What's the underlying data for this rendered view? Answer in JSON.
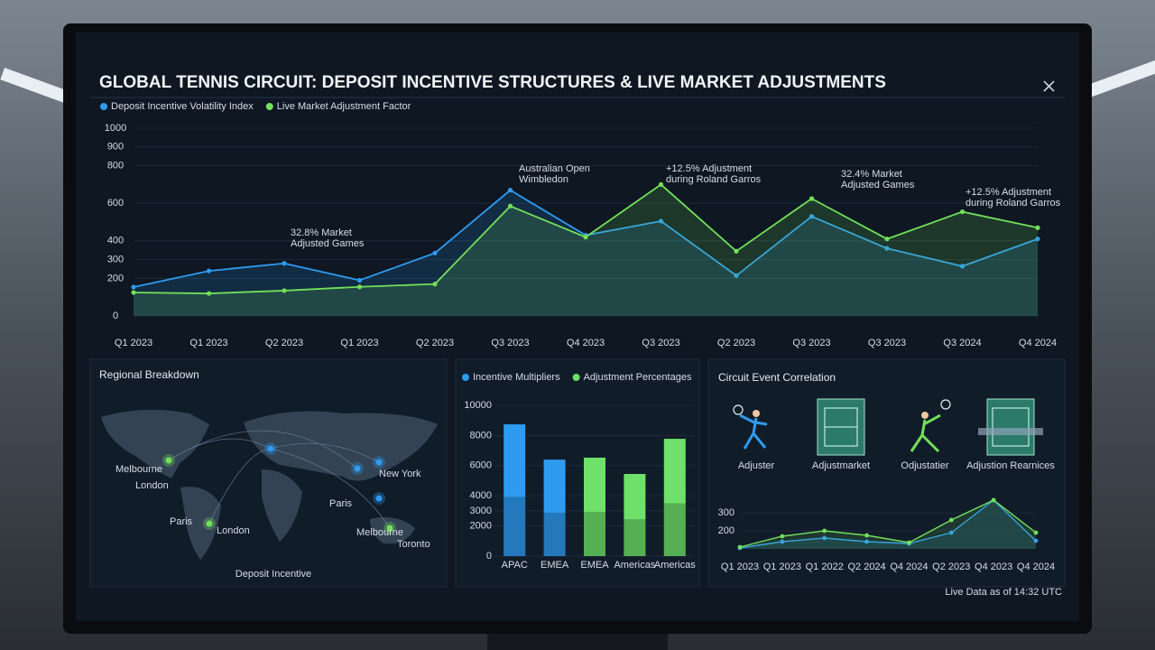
{
  "header": {
    "title": "GLOBAL TENNIS CIRCUIT: DEPOSIT INCENTIVE STRUCTURES & LIVE MARKET ADJUSTMENTS"
  },
  "chart_data": [
    {
      "type": "line",
      "categories": [
        "Q1 2023",
        "Q1 2023",
        "Q2 2023",
        "Q1 2023",
        "Q2 2023",
        "Q3 2023",
        "Q4 2023",
        "Q3 2023",
        "Q2 2023",
        "Q3 2023",
        "Q3 2023",
        "Q3 2024",
        "Q4 2024"
      ],
      "series": [
        {
          "name": "Deposit Incentive Volatility Index",
          "color": "#2e9bf0",
          "values": [
            154,
            240,
            280,
            190,
            335,
            670,
            430,
            505,
            215,
            530,
            360,
            265,
            410
          ]
        },
        {
          "name": "Live Market Adjustment Factor",
          "color": "#72e05a",
          "values": [
            125,
            120,
            135,
            155,
            170,
            585,
            420,
            700,
            345,
            625,
            410,
            555,
            470
          ]
        }
      ],
      "ylim": [
        0,
        1000
      ],
      "yticks": [
        0,
        200,
        300,
        400,
        600,
        800,
        900,
        1000
      ],
      "grid": true,
      "annotations": [
        {
          "lines": [
            "32.8% Market",
            "Adjusted Games"
          ],
          "color": "#2e9bf0"
        },
        {
          "lines": [
            "Australian Open",
            "Wimbledon"
          ],
          "color": "#2e9bf0"
        },
        {
          "lines": [
            "+12.5% Adjustment",
            "during Roland Garros"
          ],
          "color": "#72e05a"
        },
        {
          "lines": [
            "32.4% Market",
            "Adjusted Games"
          ],
          "color": "#72e05a"
        },
        {
          "lines": [
            "+12.5% Adjustment",
            "during Roland Garros"
          ],
          "color": "#72e05a"
        }
      ]
    },
    {
      "type": "bar",
      "stacked": true,
      "categories": [
        "APAC",
        "EMEA",
        "EMEA",
        "Americas",
        "Americas"
      ],
      "series": [
        {
          "name": "Incentive Multipliers",
          "color": "#2e9bf0",
          "values": [
            8740,
            6400,
            null,
            null,
            null
          ]
        },
        {
          "name": "Adjustment Percentages",
          "color": "#6fe06a",
          "values": [
            null,
            null,
            6530,
            5450,
            7780
          ]
        }
      ],
      "ylim": [
        0,
        10000
      ],
      "yticks": [
        0,
        2000,
        3000,
        4000,
        6000,
        8000,
        10000
      ],
      "grid": true
    },
    {
      "type": "line",
      "title": "Circuit Event Correlation",
      "categories": [
        "Q1 2023",
        "Q1 2023",
        "Q1 2022",
        "Q2 2024",
        "Q4 2024",
        "Q2 2023",
        "Q4 2023",
        "Q4 2024"
      ],
      "series": [
        {
          "color": "#2e9bf0",
          "values": [
            105,
            140,
            160,
            140,
            130,
            190,
            370,
            145
          ]
        },
        {
          "color": "#72e05a",
          "values": [
            110,
            170,
            200,
            175,
            135,
            260,
            370,
            190
          ]
        }
      ],
      "ylim": [
        100,
        400
      ],
      "yticks": [
        200,
        300
      ],
      "grid": true
    }
  ],
  "map": {
    "title": "Regional Breakdown",
    "cities": [
      "Melbourne",
      "London",
      "Paris",
      "London",
      "New York",
      "Paris",
      "Melbourne",
      "Toronto"
    ],
    "caption": "Deposit Incentive"
  },
  "events": {
    "labels": [
      "Adjuster",
      "Adjustmarket",
      "Odjustatier",
      "Adjustion Rearnices"
    ]
  },
  "footer": "Live Data as of 14:32 UTC"
}
